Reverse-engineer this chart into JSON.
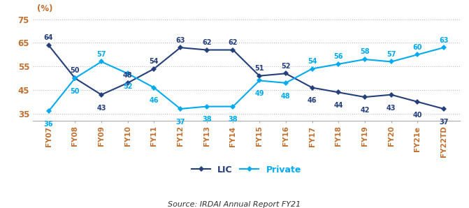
{
  "categories": [
    "FY07",
    "FY08",
    "FY09",
    "FY10",
    "FY11",
    "FY12",
    "FY13",
    "FY14",
    "FY15",
    "FY16",
    "FY17",
    "FY18",
    "FY19",
    "FY20",
    "FY21e",
    "FY22TD"
  ],
  "lic": [
    64,
    50,
    43,
    48,
    54,
    63,
    62,
    62,
    51,
    52,
    46,
    44,
    42,
    43,
    40,
    37
  ],
  "private": [
    36,
    50,
    57,
    52,
    46,
    37,
    38,
    38,
    49,
    48,
    54,
    56,
    58,
    57,
    60,
    63
  ],
  "lic_color": "#243f7a",
  "private_color": "#00aaee",
  "ylim": [
    32,
    77
  ],
  "yticks": [
    35,
    45,
    55,
    65,
    75
  ],
  "pct_label": "(%)",
  "legend_labels": [
    "LIC",
    "Private"
  ],
  "source_text": "Source: IRDAI Annual Report FY21",
  "bg_color": "#ffffff",
  "grid_color": "#bbbbbb",
  "tick_color": "#c07030",
  "annot_color_lic": "#243f7a",
  "annot_color_priv": "#00aaee",
  "annot_fontsize": 7.0,
  "tick_fontsize": 8.5
}
